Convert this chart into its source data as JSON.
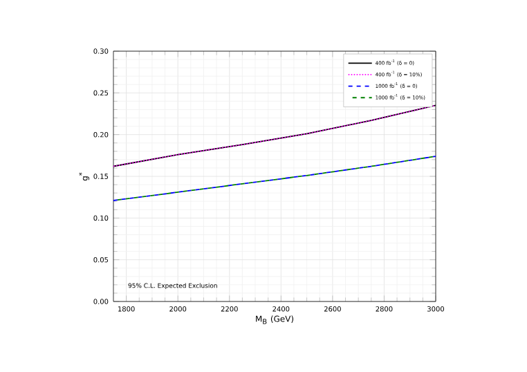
{
  "chart_data": {
    "type": "line",
    "xlabel": "M$_{B}$ (GeV)",
    "ylabel": "g$^{*}$",
    "x": [
      1750,
      2000,
      2250,
      2500,
      2750,
      3000
    ],
    "series": [
      {
        "name": "400 fb$^{-1}$ (δ = 0)",
        "color": "#000000",
        "line_style": "solid",
        "values": [
          0.162,
          0.176,
          0.188,
          0.201,
          0.217,
          0.235
        ]
      },
      {
        "name": "400 fb$^{-1}$ (δ = 10%)",
        "color": "#ff00ff",
        "line_style": "dotted",
        "values": [
          0.162,
          0.176,
          0.188,
          0.201,
          0.217,
          0.235
        ]
      },
      {
        "name": "1000 fb$^{-1}$ (δ = 0)",
        "color": "#0000ff",
        "line_style": "dashed",
        "values": [
          0.121,
          0.131,
          0.141,
          0.151,
          0.162,
          0.174
        ]
      },
      {
        "name": "1000 fb$^{-1}$ (δ = 10%)",
        "color": "#008000",
        "line_style": "dashed",
        "values": [
          0.121,
          0.131,
          0.141,
          0.151,
          0.162,
          0.174
        ]
      }
    ],
    "xlim": [
      1750,
      3000
    ],
    "xticks": [
      1800,
      2000,
      2200,
      2400,
      2600,
      2800,
      3000
    ],
    "ylim": [
      0.0,
      0.3
    ],
    "yticks": [
      {
        "value": 0,
        "label": "0.00"
      },
      {
        "value": 0.05,
        "label": "0.05"
      },
      {
        "value": 0.1,
        "label": "0.10"
      },
      {
        "value": 0.15,
        "label": "0.15"
      },
      {
        "value": 0.2,
        "label": "0.20"
      },
      {
        "value": 0.25,
        "label": "0.25"
      },
      {
        "value": 0.3,
        "label": "0.30"
      }
    ],
    "grid": true,
    "legend": "top right",
    "marker": "none",
    "annotations": [
      "95% C.L. Expected Exclusion"
    ]
  }
}
